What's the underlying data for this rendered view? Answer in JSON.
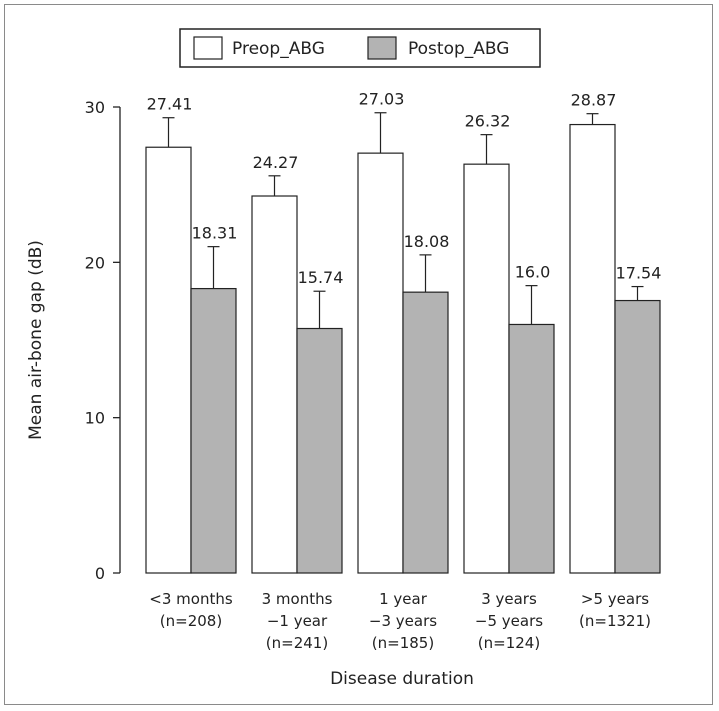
{
  "chart_data": {
    "type": "bar",
    "xlabel": "Disease duration",
    "ylabel": "Mean air-bone gap (dB)",
    "ylim": [
      0,
      30
    ],
    "yticks": [
      0,
      10,
      20,
      30
    ],
    "categories": [
      [
        "<3 months",
        "(n=208)"
      ],
      [
        "3 months",
        "−1 year",
        "(n=241)"
      ],
      [
        "1 year",
        "−3 years",
        "(n=185)"
      ],
      [
        "3 years",
        "−5 years",
        "(n=124)"
      ],
      [
        ">5 years",
        "(n=1321)"
      ]
    ],
    "series": [
      {
        "name": "Preop_ABG",
        "color": "#ffffff",
        "values": [
          27.41,
          24.27,
          27.03,
          26.32,
          28.87
        ],
        "labels": [
          "27.41",
          "24.27",
          "27.03",
          "26.32",
          "28.87"
        ],
        "error": [
          1.9,
          1.3,
          2.6,
          1.9,
          0.7
        ]
      },
      {
        "name": "Postop_ABG",
        "color": "#b3b3b3",
        "values": [
          18.31,
          15.74,
          18.08,
          16.0,
          17.54
        ],
        "labels": [
          "18.31",
          "15.74",
          "18.08",
          "16.0",
          "17.54"
        ],
        "error": [
          2.7,
          2.4,
          2.4,
          2.5,
          0.9
        ]
      }
    ],
    "legend": "top-center",
    "grid": false
  }
}
